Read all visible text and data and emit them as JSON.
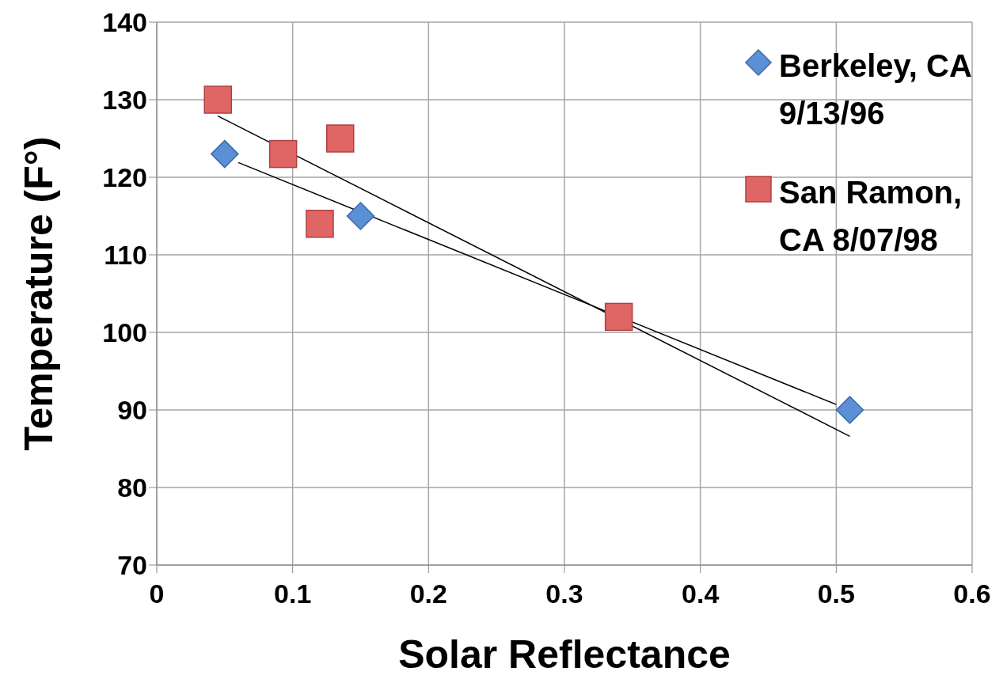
{
  "chart_data": {
    "type": "scatter",
    "xlabel": "Solar Reflectance",
    "ylabel": "Temperature (F°)",
    "xlim": [
      0,
      0.6
    ],
    "xticks": [
      0,
      0.1,
      0.2,
      0.3,
      0.4,
      0.5,
      0.6
    ],
    "ylim": [
      70,
      140
    ],
    "yticks": [
      70,
      80,
      90,
      100,
      110,
      120,
      130,
      140
    ],
    "grid": true,
    "legend": "top right",
    "series": [
      {
        "name": "Berkeley, CA 9/13/96",
        "marker": "diamond",
        "color": "#5b8fd6",
        "x": [
          0.05,
          0.15,
          0.51
        ],
        "values": [
          123,
          115,
          90
        ]
      },
      {
        "name": "San Ramon, CA 8/07/98",
        "marker": "square",
        "color": "#e06666",
        "x": [
          0.045,
          0.093,
          0.12,
          0.135,
          0.34
        ],
        "values": [
          130,
          123,
          114,
          125,
          102
        ]
      },
      {
        "type": "line",
        "marker": "none",
        "line_style": "solid",
        "color": "#000000",
        "x": [
          0.06,
          0.5
        ],
        "values": [
          121.9,
          90.7
        ]
      },
      {
        "type": "line",
        "marker": "none",
        "line_style": "solid",
        "color": "#000000",
        "x": [
          0.045,
          0.51
        ],
        "values": [
          127.9,
          86.6
        ]
      }
    ]
  }
}
